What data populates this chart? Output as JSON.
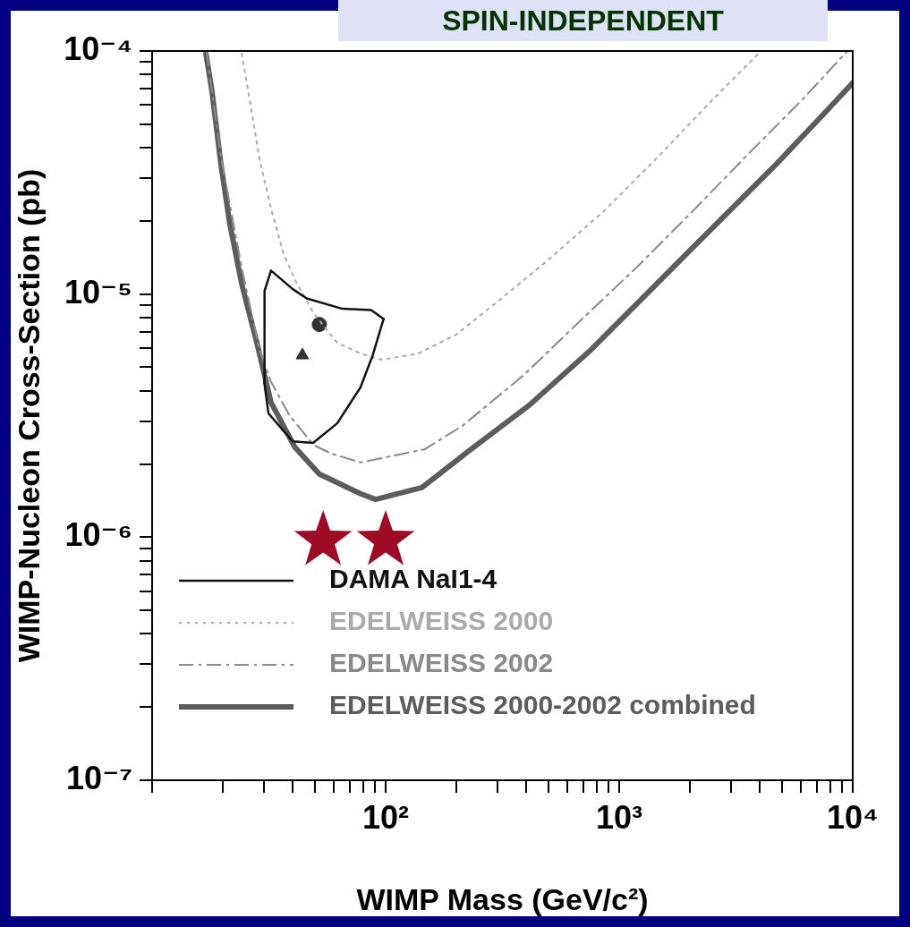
{
  "chart_data": {
    "type": "line",
    "title": "SPIN-INDEPENDENT",
    "xlabel": "WIMP Mass (GeV/c²)",
    "ylabel": "WIMP-Nucleon Cross-Section (pb)",
    "log": "xy",
    "legend": "bottom",
    "xlim": [
      10,
      10000
    ],
    "ylim": [
      1e-07,
      0.0001
    ],
    "xticks": [
      {
        "value": 10,
        "label": null
      },
      {
        "value": 20,
        "label": null
      },
      {
        "value": 30,
        "label": null
      },
      {
        "value": 40,
        "label": null
      },
      {
        "value": 50,
        "label": null
      },
      {
        "value": 60,
        "label": null
      },
      {
        "value": 70,
        "label": null
      },
      {
        "value": 80,
        "label": null
      },
      {
        "value": 90,
        "label": null
      },
      {
        "value": 100,
        "label": "10²"
      },
      {
        "value": 200,
        "label": null
      },
      {
        "value": 300,
        "label": null
      },
      {
        "value": 400,
        "label": null
      },
      {
        "value": 500,
        "label": null
      },
      {
        "value": 600,
        "label": null
      },
      {
        "value": 700,
        "label": null
      },
      {
        "value": 800,
        "label": null
      },
      {
        "value": 900,
        "label": null
      },
      {
        "value": 1000,
        "label": "10³"
      },
      {
        "value": 2000,
        "label": null
      },
      {
        "value": 3000,
        "label": null
      },
      {
        "value": 4000,
        "label": null
      },
      {
        "value": 5000,
        "label": null
      },
      {
        "value": 6000,
        "label": null
      },
      {
        "value": 7000,
        "label": null
      },
      {
        "value": 8000,
        "label": null
      },
      {
        "value": 9000,
        "label": null
      },
      {
        "value": 10000,
        "label": "10⁴"
      }
    ],
    "yticks": [
      {
        "value": 1e-07,
        "label": "10⁻⁷"
      },
      {
        "value": 2e-07,
        "label": null
      },
      {
        "value": 3e-07,
        "label": null
      },
      {
        "value": 4e-07,
        "label": null
      },
      {
        "value": 5e-07,
        "label": null
      },
      {
        "value": 6e-07,
        "label": null
      },
      {
        "value": 7e-07,
        "label": null
      },
      {
        "value": 8e-07,
        "label": null
      },
      {
        "value": 9e-07,
        "label": null
      },
      {
        "value": 1e-06,
        "label": "10⁻⁶"
      },
      {
        "value": 2e-06,
        "label": null
      },
      {
        "value": 3e-06,
        "label": null
      },
      {
        "value": 4e-06,
        "label": null
      },
      {
        "value": 5e-06,
        "label": null
      },
      {
        "value": 6e-06,
        "label": null
      },
      {
        "value": 7e-06,
        "label": null
      },
      {
        "value": 8e-06,
        "label": null
      },
      {
        "value": 9e-06,
        "label": null
      },
      {
        "value": 1e-05,
        "label": "10⁻⁵"
      },
      {
        "value": 2e-05,
        "label": null
      },
      {
        "value": 3e-05,
        "label": null
      },
      {
        "value": 4e-05,
        "label": null
      },
      {
        "value": 5e-05,
        "label": null
      },
      {
        "value": 6e-05,
        "label": null
      },
      {
        "value": 7e-05,
        "label": null
      },
      {
        "value": 8e-05,
        "label": null
      },
      {
        "value": 9e-05,
        "label": null
      },
      {
        "value": 0.0001,
        "label": "10⁻⁴"
      }
    ],
    "series": [
      {
        "name": "DAMA NaI1-4",
        "type": "line",
        "line_style": "solid",
        "color": "#111111",
        "x": [
          30.2,
          30.3,
          32.3,
          39.9,
          45.9,
          65.3,
          86.7,
          98
        ],
        "values": [
          4.35e-06,
          1.03e-05,
          1.25e-05,
          1.05e-05,
          9.6e-06,
          8.7e-06,
          8.6e-06,
          7.9e-06
        ]
      },
      {
        "type": "line",
        "line_style": "solid",
        "color": "#111111",
        "x": [
          30.2,
          31.5,
          39.9,
          48.9,
          62,
          78,
          88,
          98
        ],
        "values": [
          4.35e-06,
          3.23e-06,
          2.48e-06,
          2.44e-06,
          2.94e-06,
          4.13e-06,
          5.6e-06,
          7.9e-06
        ]
      },
      {
        "name": "EDELWEISS 2000",
        "type": "line",
        "line_style": "dotted",
        "color": "#aaaaaa",
        "x": [
          24.2,
          26.4,
          28.8,
          32.3,
          36.5,
          41,
          48.9,
          62,
          78,
          96,
          138,
          200,
          305,
          496,
          857,
          1480,
          2550,
          3970
        ],
        "values": [
          9.75e-05,
          6e-05,
          3.61e-05,
          2.25e-05,
          1.47e-05,
          1.14e-05,
          8.4e-06,
          6.3e-06,
          5.7e-06,
          5.37e-06,
          5.7e-06,
          6.8e-06,
          9.4e-06,
          1.38e-05,
          2.19e-05,
          3.7e-05,
          6.4e-05,
          9.8e-05
        ]
      },
      {
        "name": "EDELWEISS 2002",
        "type": "line",
        "line_style": "dashed",
        "color": "#8a8a8a",
        "x": [
          17.1,
          19.7,
          24.2,
          28.8,
          32.3,
          38.5,
          48.9,
          58.3,
          78,
          105,
          147,
          213,
          391,
          675,
          1200,
          2070,
          3570,
          6170,
          9490
        ],
        "values": [
          0.0001,
          3.68e-05,
          1.28e-05,
          5.9e-06,
          4.35e-06,
          3.2e-06,
          2.4e-06,
          2.21e-06,
          2.03e-06,
          2.15e-06,
          2.3e-06,
          2.87e-06,
          4.65e-06,
          7.7e-06,
          1.3e-05,
          2.2e-05,
          3.77e-05,
          6.4e-05,
          0.0001
        ]
      },
      {
        "name": "EDELWEISS 2000-2002 combined",
        "type": "line",
        "line_style": "solid",
        "color": "#5c5c5c",
        "x": [
          17.0,
          18.0,
          19.7,
          21.5,
          24.2,
          28.1,
          32.3,
          40.9,
          52,
          78,
          90.6,
          143,
          224,
          412,
          757,
          1390,
          2550,
          4690,
          7410,
          10000
        ],
        "values": [
          9.75e-05,
          6.95e-05,
          3.43e-05,
          1.95e-05,
          1.1e-05,
          6.3e-06,
          3.58e-06,
          2.34e-06,
          1.82e-06,
          1.51e-06,
          1.43e-06,
          1.6e-06,
          2.24e-06,
          3.49e-06,
          5.9e-06,
          1.06e-05,
          1.9e-05,
          3.41e-05,
          5.43e-05,
          7.4e-05
        ]
      },
      {
        "type": "scatter",
        "marker": "circle",
        "color": "#333333",
        "x": [
          52
        ],
        "values": [
          7.5e-06
        ]
      },
      {
        "type": "scatter",
        "marker": "triangle",
        "color": "#333333",
        "x": [
          44
        ],
        "values": [
          5.6e-06
        ]
      },
      {
        "type": "scatter",
        "marker": "star",
        "color": "#9e0b26",
        "x": [
          54,
          100
        ],
        "values": [
          9.7e-07,
          9.7e-07
        ]
      }
    ]
  }
}
